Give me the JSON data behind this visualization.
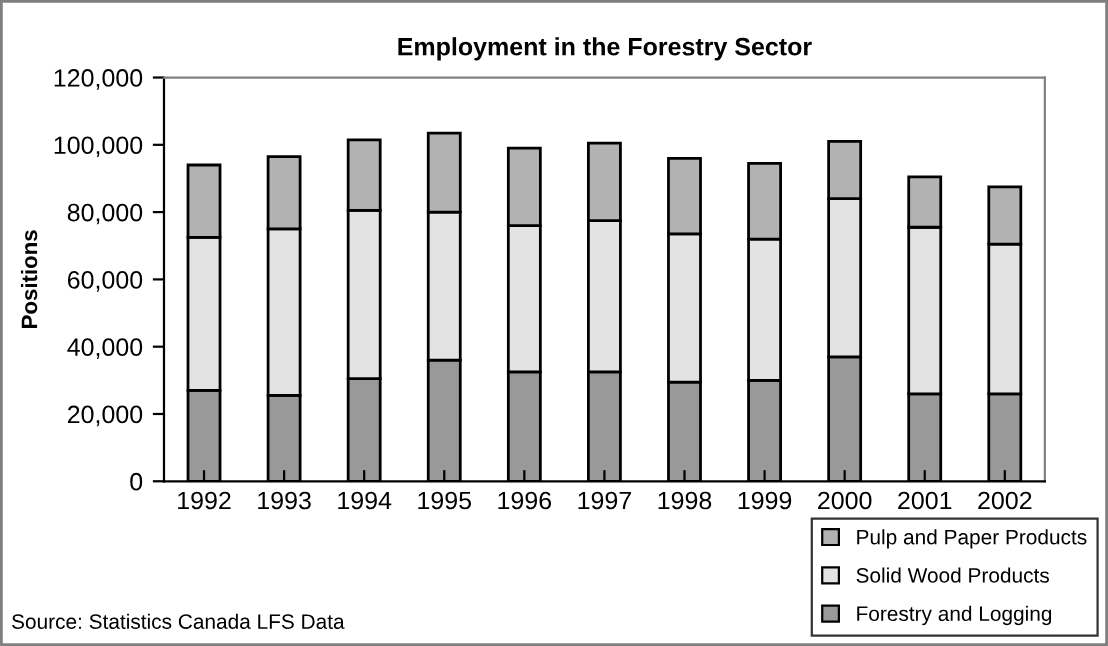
{
  "chart_data": {
    "type": "bar",
    "stacked": true,
    "title": "Employment in the Forestry Sector",
    "ylabel": "Positions",
    "categories": [
      "1992",
      "1993",
      "1994",
      "1995",
      "1996",
      "1997",
      "1998",
      "1999",
      "2000",
      "2001",
      "2002"
    ],
    "series": [
      {
        "name": "Forestry and Logging",
        "color": "#999999",
        "values": [
          27000,
          25500,
          30500,
          36000,
          32500,
          32500,
          29500,
          30000,
          37000,
          26000,
          26000
        ]
      },
      {
        "name": "Solid Wood Products",
        "color": "#e3e3e3",
        "values": [
          45500,
          49500,
          50000,
          44000,
          43500,
          45000,
          44000,
          42000,
          47000,
          49500,
          44500
        ]
      },
      {
        "name": "Pulp and Paper Products",
        "color": "#b2b2b2",
        "values": [
          21500,
          21500,
          21000,
          23500,
          23000,
          23000,
          22500,
          22500,
          17000,
          15000,
          17000
        ]
      }
    ],
    "ylim": [
      0,
      120000
    ],
    "yticks": [
      {
        "value": 0,
        "label": "0"
      },
      {
        "value": 20000,
        "label": "20,000"
      },
      {
        "value": 40000,
        "label": "40,000"
      },
      {
        "value": 60000,
        "label": "60,000"
      },
      {
        "value": 80000,
        "label": "80,000"
      },
      {
        "value": 100000,
        "label": "100,000"
      },
      {
        "value": 120000,
        "label": "120,000"
      }
    ],
    "grid": false,
    "legend": "bottom right",
    "annotations": [
      "Source: Statistics Canada LFS Data"
    ]
  }
}
